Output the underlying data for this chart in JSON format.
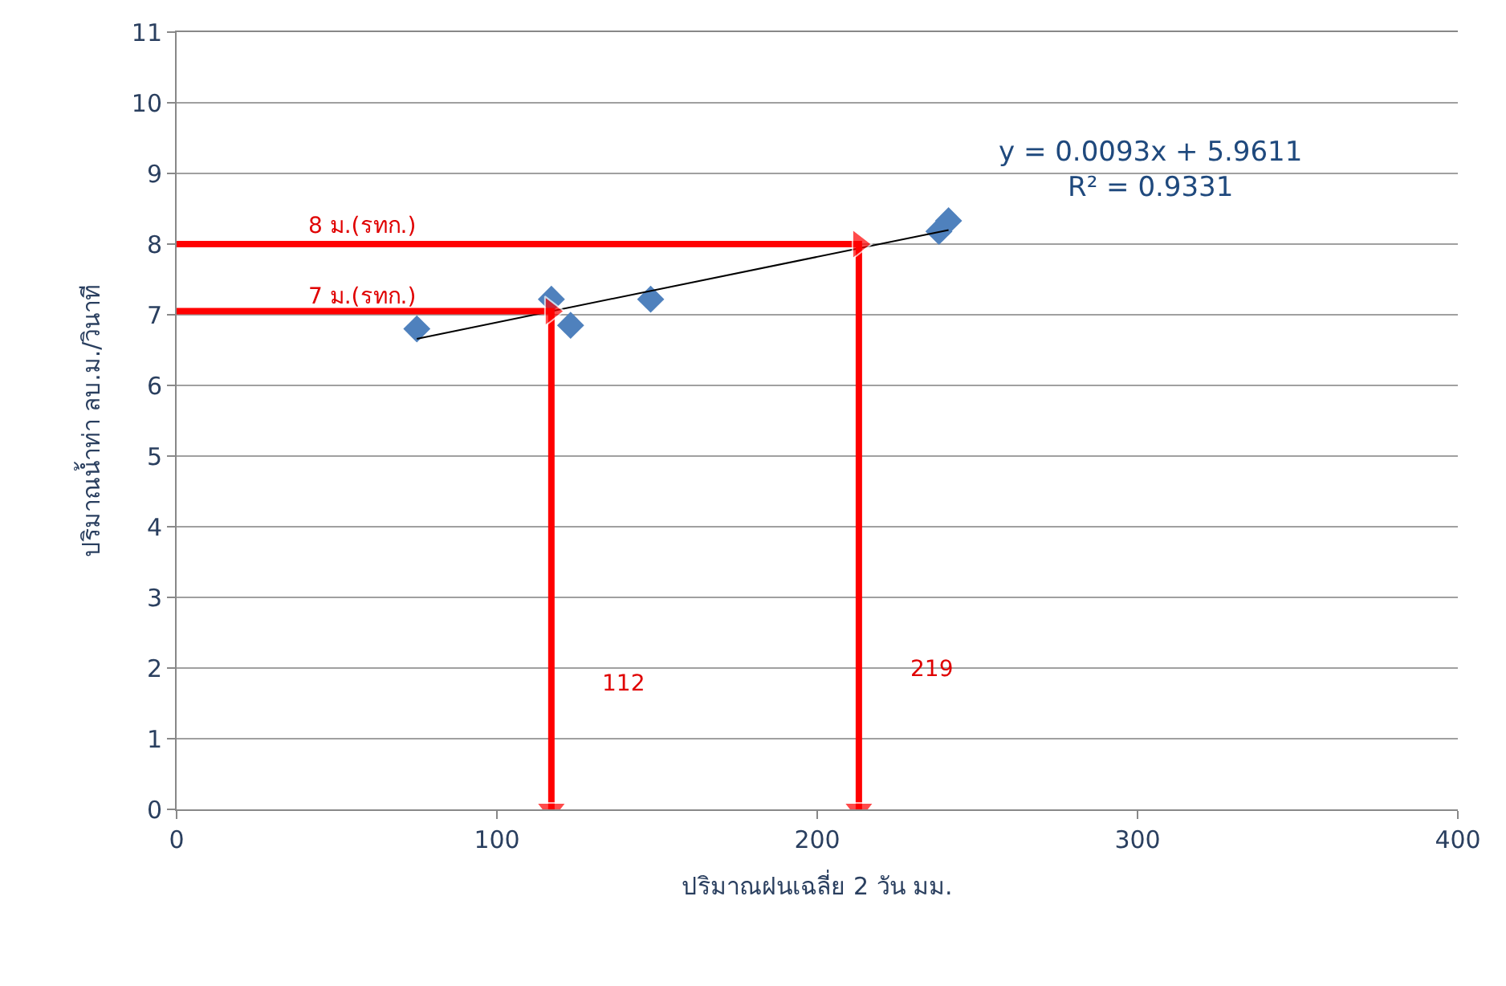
{
  "chart_data": {
    "type": "scatter",
    "xlabel": "ปริมาณฝนเฉลี่ย 2 วัน มม.",
    "ylabel": "ปริมาณน้ำท่า ลบ.ม./วินาที",
    "xlim": [
      0,
      400
    ],
    "xticks": [
      0,
      100,
      200,
      300,
      400
    ],
    "ylim": [
      0,
      11
    ],
    "yticks": [
      0,
      1,
      2,
      3,
      4,
      5,
      6,
      7,
      8,
      9,
      10,
      11
    ],
    "grid": "y",
    "legend": false,
    "marker": "diamond",
    "series": [
      {
        "color": "#4f81bd",
        "x": [
          75,
          117,
          123,
          148,
          238,
          241
        ],
        "values": [
          6.8,
          7.22,
          6.85,
          7.22,
          8.18,
          8.33
        ]
      },
      {
        "type": "line",
        "color": "#000000",
        "x": [
          75,
          241
        ],
        "values": [
          6.66,
          8.2
        ],
        "marker": "none"
      },
      {
        "type": "line",
        "color": "#ff0000",
        "x": [
          0,
          117,
          117
        ],
        "values": [
          7.05,
          7.05,
          0
        ],
        "marker": "triangle"
      },
      {
        "type": "line",
        "color": "#ff0000",
        "x": [
          0,
          213,
          213
        ],
        "values": [
          8,
          8,
          0
        ],
        "marker": "triangle"
      }
    ],
    "annotations": [
      "y = 0.0093x + 5.9611\nR² = 0.9331",
      "8 ม.(รทก.)",
      "7 ม.(รทก.)",
      "112",
      "219"
    ]
  }
}
